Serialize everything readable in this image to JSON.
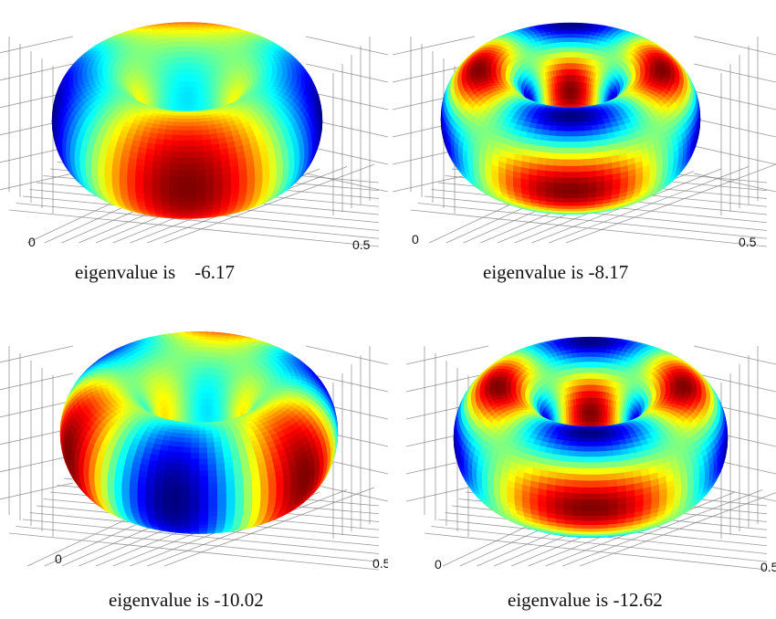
{
  "figure": {
    "panels": [
      {
        "caption": "eigenvalue is    -6.17",
        "tick_left": "0",
        "tick_right": "0.5",
        "mode": "m2_lobes"
      },
      {
        "caption": "eigenvalue is -8.17",
        "tick_left": "0",
        "tick_right": "0.5",
        "mode": "m2_rings"
      },
      {
        "caption": "eigenvalue is -10.02",
        "tick_left": "0",
        "tick_right": "0.5",
        "mode": "m3_lobes"
      },
      {
        "caption": "eigenvalue is -12.62",
        "tick_left": "0",
        "tick_right": "0.5",
        "mode": "m2_two_rings"
      }
    ],
    "colormap": "jet",
    "colors": {
      "background": "#ffffff",
      "grid": "#777777",
      "text": "#111111"
    }
  }
}
